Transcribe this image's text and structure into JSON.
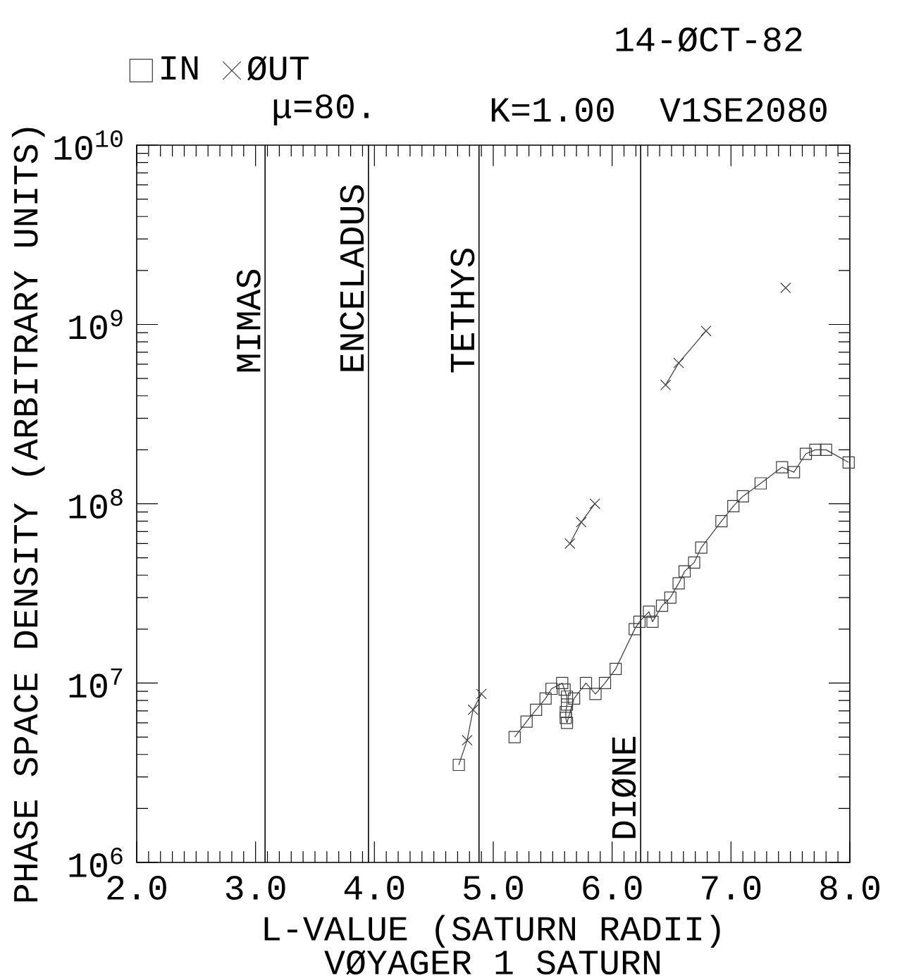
{
  "chart_data": {
    "type": "line",
    "xlabel": "L-VALUE (SATURN RADII)",
    "ylabel": "PHASE SPACE DENSITY (ARBITRARY UNITS)",
    "annotations": [
      "14-ØCT-82",
      "μ=80.",
      "K=1.00",
      "V1SE2080",
      "VØYAGER 1 SATURN"
    ],
    "xlim": [
      2,
      8
    ],
    "xticks": [
      {
        "value": 2,
        "label": "2.0"
      },
      {
        "value": 3,
        "label": "3.0"
      },
      {
        "value": 4,
        "label": "4.0"
      },
      {
        "value": 5,
        "label": "5.0"
      },
      {
        "value": 6,
        "label": "6.0"
      },
      {
        "value": 7,
        "label": "7.0"
      },
      {
        "value": 8,
        "label": "8.0"
      }
    ],
    "ylim": [
      1000000,
      10000000000
    ],
    "yticks": [
      {
        "value": 1000000,
        "label": "10$^{6}$"
      },
      {
        "value": 10000000,
        "label": "10$^{7}$"
      },
      {
        "value": 100000000,
        "label": "10$^{8}$"
      },
      {
        "value": 1000000000,
        "label": "10$^{9}$"
      },
      {
        "value": 10000000000,
        "label": "10$^{10}$"
      }
    ],
    "log": "y",
    "legend": "top left",
    "series": [
      {
        "name": "IN",
        "marker": "square",
        "color": "#3a3a3a",
        "x": [
          4.71,
          null,
          5.18,
          5.28,
          5.36,
          5.44,
          5.49,
          5.58,
          5.6,
          5.62,
          5.62,
          5.61,
          5.61,
          5.62,
          5.68,
          5.78,
          5.86,
          5.94,
          6.03,
          6.19,
          6.23,
          6.31,
          6.34,
          6.42,
          6.49,
          6.56,
          6.61,
          6.69,
          6.75,
          6.92,
          7.02,
          7.1,
          7.25,
          7.43,
          7.53,
          7.63,
          7.71,
          7.8,
          7.99
        ],
        "values": [
          3500000,
          null,
          5000000,
          6100000,
          7100000,
          8200000,
          9300000,
          10000000,
          9200000,
          8400000,
          7600000,
          6900000,
          6400000,
          6000000,
          8200000,
          10000000,
          8700000,
          10000000,
          12000000,
          20000000,
          22000000,
          25000000,
          22000000,
          27000000,
          30000000,
          36000000,
          42000000,
          47000000,
          57000000,
          80000000,
          97000000,
          110000000,
          130000000,
          160000000,
          150000000,
          190000000,
          200000000,
          200000000,
          170000000
        ]
      },
      {
        "name": "ØUT",
        "marker": "cross",
        "color": "#3a3a3a",
        "x": [
          4.78,
          4.83,
          4.9,
          null,
          5.645,
          5.74,
          5.855,
          null,
          6.45,
          6.56,
          6.79,
          null,
          7.46
        ],
        "values": [
          4800000,
          7100000,
          8700000,
          null,
          60000000,
          79000000,
          100000000,
          null,
          460000000,
          610000000,
          920000000,
          null,
          1600000000
        ]
      },
      {
        "marker": "none",
        "color": "#3a3a3a",
        "x": [
          4.71,
          4.78
        ],
        "values": [
          3500000,
          4800000
        ]
      }
    ],
    "ref_lines": [
      {
        "axis": "x",
        "value": 3.08,
        "label": "MIMAS"
      },
      {
        "axis": "x",
        "value": 3.95,
        "label": "ENCELADUS"
      },
      {
        "axis": "x",
        "value": 4.88,
        "label": "TETHYS"
      },
      {
        "axis": "x",
        "value": 6.24,
        "label": "DIØNE"
      }
    ]
  }
}
